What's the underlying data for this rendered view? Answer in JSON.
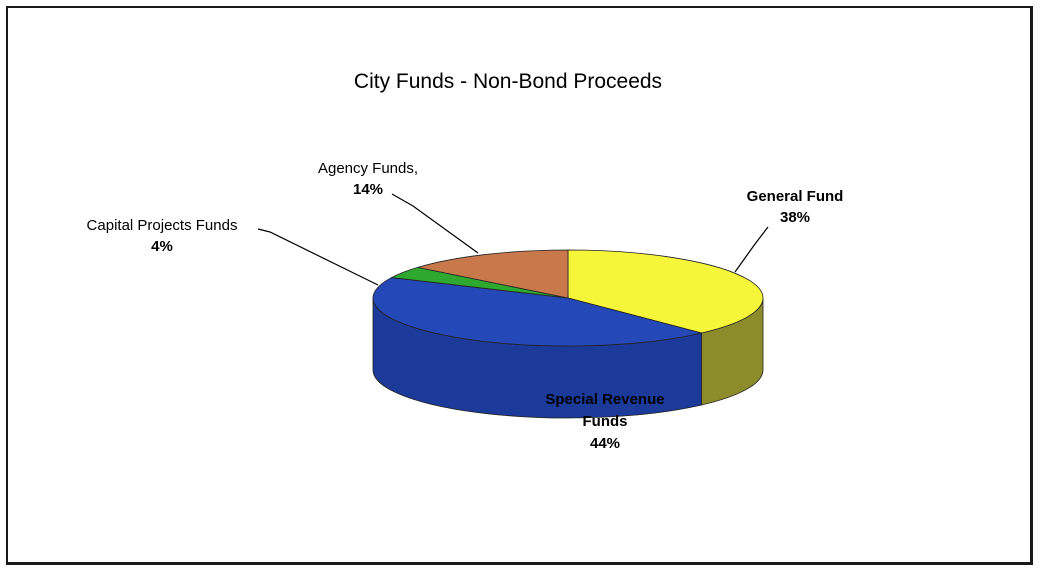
{
  "chart_data": {
    "type": "pie",
    "title": "City Funds - Non-Bond Proceeds",
    "slices": [
      {
        "label": "General Fund",
        "value_label": "38%",
        "value": 38,
        "color": "#f5f53a",
        "side_color": "#8c8c2a"
      },
      {
        "label": "Special Revenue Funds",
        "value_label": "44%",
        "value": 44,
        "color": "#2448b8",
        "side_color": "#1c3a9a"
      },
      {
        "label": "Capital Projects Funds",
        "value_label": "4%",
        "value": 4,
        "color": "#2ea82e",
        "side_color": "#1f7a1f"
      },
      {
        "label": "Agency Funds,",
        "value_label": "14%",
        "value": 14,
        "color": "#c8784a",
        "side_color": "#9a5a36"
      }
    ],
    "legend": "none",
    "style": "3d-pie"
  }
}
